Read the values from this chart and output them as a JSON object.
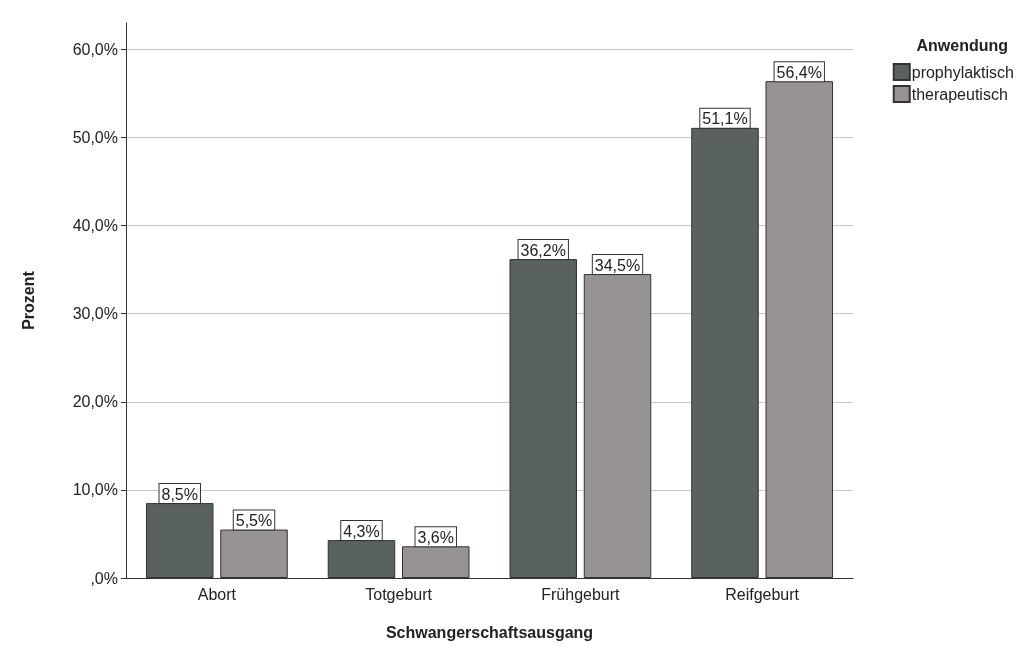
{
  "chart_data": {
    "type": "bar",
    "xlabel": "Schwangerschaftsausgang",
    "ylabel": "Prozent",
    "legend_title": "Anwendung",
    "categories": [
      "Abort",
      "Totgeburt",
      "Frühgeburt",
      "Reifgeburt"
    ],
    "series": [
      {
        "name": "prophylaktisch",
        "color": "#59625d",
        "values": [
          8.5,
          4.3,
          36.2,
          51.1
        ],
        "value_labels": [
          "8,5%",
          "4,3%",
          "36,2%",
          "51,1%"
        ]
      },
      {
        "name": "therapeutisch",
        "color": "#989393",
        "values": [
          5.5,
          3.6,
          34.5,
          56.4
        ],
        "value_labels": [
          "5,5%",
          "3,6%",
          "34,5%",
          "56,4%"
        ]
      }
    ],
    "ylim": [
      0,
      63
    ],
    "yticks": [
      {
        "value": 0,
        "label": ",0%"
      },
      {
        "value": 10,
        "label": "10,0%"
      },
      {
        "value": 20,
        "label": "20,0%"
      },
      {
        "value": 30,
        "label": "30,0%"
      },
      {
        "value": 40,
        "label": "40,0%"
      },
      {
        "value": 50,
        "label": "50,0%"
      },
      {
        "value": 60,
        "label": "60,0%"
      }
    ],
    "grid": "y",
    "legend": "top right"
  }
}
